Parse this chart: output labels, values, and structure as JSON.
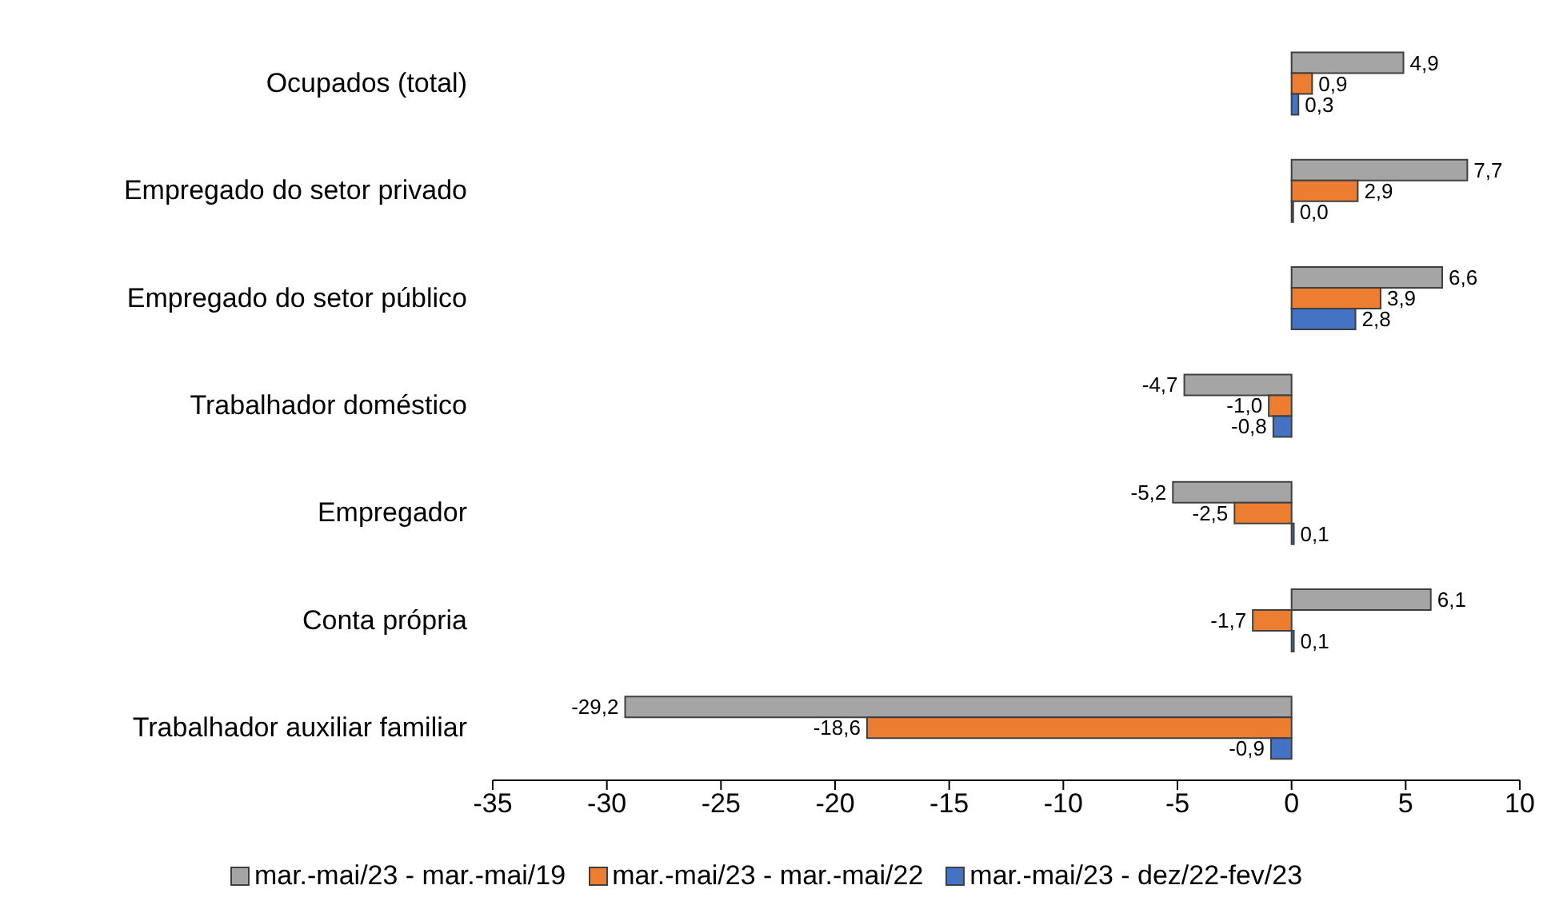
{
  "chart_data": {
    "type": "bar",
    "orientation": "horizontal",
    "categories": [
      "Ocupados (total)",
      "Empregado do setor privado",
      "Empregado do setor público",
      "Trabalhador doméstico",
      "Empregador",
      "Conta própria",
      "Trabalhador auxiliar familiar"
    ],
    "series": [
      {
        "name": "mar.-mai/23 - mar.-mai/19",
        "color": "#a5a5a5",
        "values": [
          4.9,
          7.7,
          6.6,
          -4.7,
          -5.2,
          6.1,
          -29.2
        ],
        "value_labels": [
          "4,9",
          "7,7",
          "6,6",
          "-4,7",
          "-5,2",
          "6,1",
          "-29,2"
        ]
      },
      {
        "name": "mar.-mai/23 - mar.-mai/22",
        "color": "#ed7d31",
        "values": [
          0.9,
          2.9,
          3.9,
          -1.0,
          -2.5,
          -1.7,
          -18.6
        ],
        "value_labels": [
          "0,9",
          "2,9",
          "3,9",
          "-1,0",
          "-2,5",
          "-1,7",
          "-18,6"
        ]
      },
      {
        "name": "mar.-mai/23 - dez/22-fev/23",
        "color": "#4472c4",
        "values": [
          0.3,
          0.0,
          2.8,
          -0.8,
          0.1,
          0.1,
          -0.9
        ],
        "value_labels": [
          "0,3",
          "0,0",
          "2,8",
          "-0,8",
          "0,1",
          "0,1",
          "-0,9"
        ]
      }
    ],
    "xlim": [
      -35,
      10
    ],
    "xticks": [
      -35,
      -30,
      -25,
      -20,
      -15,
      -10,
      -5,
      0,
      5,
      10
    ],
    "grid": false,
    "legend": "bottom"
  }
}
